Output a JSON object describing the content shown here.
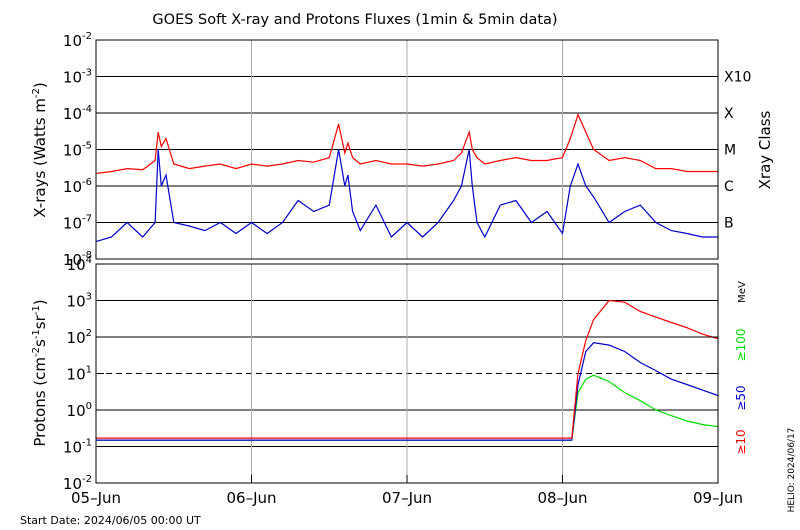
{
  "chart_data": [
    {
      "type": "line",
      "title": "GOES Soft X-ray and Protons Fluxes   (1min & 5min data)",
      "ylabel": "X-rays (Watts m",
      "ylabel_sup": "-2",
      "ylabel_tail": ")",
      "y_scale": "log",
      "ylim": [
        1e-08,
        0.01
      ],
      "ytick_labels": [
        {
          "base": "10",
          "exp": "-8"
        },
        {
          "base": "10",
          "exp": "-7"
        },
        {
          "base": "10",
          "exp": "-6"
        },
        {
          "base": "10",
          "exp": "-5"
        },
        {
          "base": "10",
          "exp": "-4"
        },
        {
          "base": "10",
          "exp": "-3"
        },
        {
          "base": "10",
          "exp": "-2"
        }
      ],
      "right_axis_title": "Xray Class",
      "class_labels": [
        "B",
        "C",
        "M",
        "X",
        "X10"
      ],
      "class_levels": [
        1e-07,
        1e-06,
        1e-05,
        0.0001,
        0.001
      ],
      "grid": true,
      "series": [
        {
          "color": "#ff0000",
          "x": [
            0,
            0.1,
            0.2,
            0.3,
            0.38,
            0.4,
            0.42,
            0.45,
            0.5,
            0.6,
            0.7,
            0.8,
            0.9,
            1.0,
            1.1,
            1.2,
            1.3,
            1.4,
            1.5,
            1.56,
            1.6,
            1.62,
            1.65,
            1.7,
            1.8,
            1.9,
            2.0,
            2.1,
            2.2,
            2.3,
            2.35,
            2.4,
            2.42,
            2.45,
            2.5,
            2.6,
            2.7,
            2.8,
            2.9,
            3.0,
            3.05,
            3.1,
            3.15,
            3.2,
            3.3,
            3.4,
            3.5,
            3.6,
            3.7,
            3.8,
            3.9,
            4.0
          ],
          "y": [
            2.2e-06,
            2.5e-06,
            3e-06,
            2.8e-06,
            5e-06,
            3e-05,
            1.2e-05,
            2e-05,
            4e-06,
            3e-06,
            3.5e-06,
            4e-06,
            3e-06,
            4e-06,
            3.5e-06,
            4e-06,
            5e-06,
            4.5e-06,
            6e-06,
            5e-05,
            8e-06,
            1.5e-05,
            6e-06,
            4e-06,
            5e-06,
            4e-06,
            4e-06,
            3.5e-06,
            4e-06,
            5e-06,
            8e-06,
            3e-05,
            1e-05,
            6e-06,
            4e-06,
            5e-06,
            6e-06,
            5e-06,
            5e-06,
            6e-06,
            2e-05,
            9e-05,
            3e-05,
            1e-05,
            5e-06,
            6e-06,
            5e-06,
            3e-06,
            3e-06,
            2.5e-06,
            2.5e-06,
            2.5e-06
          ]
        },
        {
          "color": "#0000cc",
          "x": [
            0,
            0.1,
            0.2,
            0.3,
            0.38,
            0.4,
            0.42,
            0.45,
            0.5,
            0.6,
            0.7,
            0.8,
            0.9,
            1.0,
            1.1,
            1.2,
            1.3,
            1.4,
            1.5,
            1.56,
            1.6,
            1.62,
            1.65,
            1.7,
            1.8,
            1.9,
            2.0,
            2.1,
            2.2,
            2.3,
            2.35,
            2.4,
            2.42,
            2.45,
            2.5,
            2.6,
            2.7,
            2.8,
            2.9,
            3.0,
            3.05,
            3.1,
            3.15,
            3.2,
            3.3,
            3.4,
            3.5,
            3.6,
            3.7,
            3.8,
            3.9,
            4.0
          ],
          "y": [
            3e-08,
            4e-08,
            1e-07,
            4e-08,
            1e-07,
            1e-05,
            1e-06,
            2e-06,
            1e-07,
            8e-08,
            6e-08,
            1e-07,
            5e-08,
            1e-07,
            5e-08,
            1e-07,
            4e-07,
            2e-07,
            3e-07,
            1e-05,
            1e-06,
            2e-06,
            2e-07,
            6e-08,
            3e-07,
            4e-08,
            1e-07,
            4e-08,
            1e-07,
            4e-07,
            1e-06,
            1e-05,
            1e-06,
            1e-07,
            4e-08,
            3e-07,
            4e-07,
            1e-07,
            2e-07,
            5e-08,
            1e-06,
            4e-06,
            1e-06,
            5e-07,
            1e-07,
            2e-07,
            3e-07,
            1e-07,
            6e-08,
            5e-08,
            4e-08,
            4e-08
          ]
        }
      ]
    },
    {
      "type": "line",
      "ylabel": "Protons (cm",
      "ylabel_parts": [
        "Protons (cm",
        "-2",
        "s",
        "-1",
        "sr",
        "-1",
        ")"
      ],
      "y_scale": "log",
      "ylim": [
        0.01,
        10000
      ],
      "ytick_labels": [
        {
          "base": "10",
          "exp": "-2"
        },
        {
          "base": "10",
          "exp": "-1"
        },
        {
          "base": "10",
          "exp": "0"
        },
        {
          "base": "10",
          "exp": "1"
        },
        {
          "base": "10",
          "exp": "2"
        },
        {
          "base": "10",
          "exp": "3"
        },
        {
          "base": "10",
          "exp": "4"
        }
      ],
      "xtick_labels": [
        "05–Jun",
        "06–Jun",
        "07–Jun",
        "08–Jun",
        "09–Jun"
      ],
      "threshold": 10,
      "grid": true,
      "legend_unit": "MeV",
      "series": [
        {
          "name": "≥10",
          "color": "#ff0000",
          "x": [
            0,
            3.06,
            3.1,
            3.15,
            3.2,
            3.3,
            3.4,
            3.5,
            3.6,
            3.7,
            3.8,
            3.9,
            4.0
          ],
          "y": [
            0.17,
            0.17,
            10,
            80,
            300,
            1000,
            900,
            500,
            350,
            250,
            180,
            120,
            90
          ]
        },
        {
          "name": "≥50",
          "color": "#0000cc",
          "x": [
            0,
            3.06,
            3.1,
            3.15,
            3.2,
            3.3,
            3.4,
            3.5,
            3.6,
            3.7,
            3.8,
            3.9,
            4.0
          ],
          "y": [
            0.15,
            0.15,
            5,
            40,
            70,
            60,
            40,
            20,
            12,
            7,
            5,
            3.5,
            2.5
          ]
        },
        {
          "name": "≥100",
          "color": "#00dd00",
          "x": [
            0,
            3.06,
            3.1,
            3.15,
            3.2,
            3.3,
            3.4,
            3.5,
            3.6,
            3.7,
            3.8,
            3.9,
            4.0
          ],
          "y": [
            0.15,
            0.15,
            3,
            7,
            9,
            6,
            3,
            1.8,
            1.0,
            0.7,
            0.5,
            0.4,
            0.35
          ]
        }
      ]
    }
  ],
  "footer": {
    "start_date": "Start Date: 2024/06/05 00:00 UT",
    "stamp": "HELIO: 2024/06/17"
  }
}
